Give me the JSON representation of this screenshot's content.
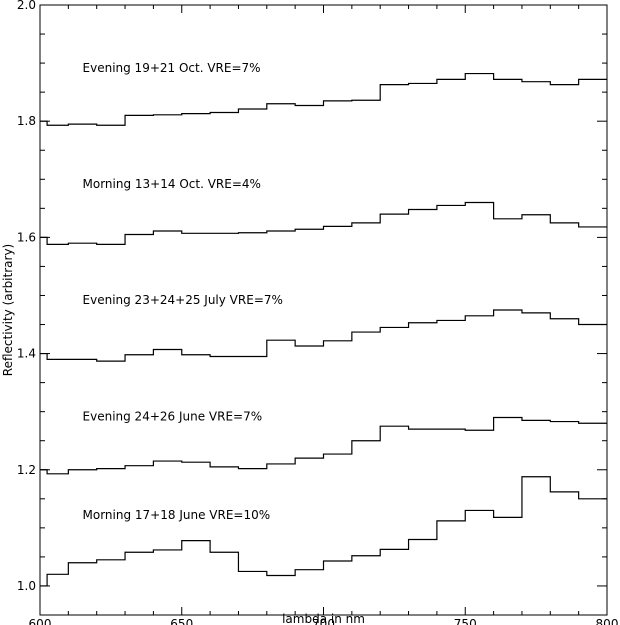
{
  "chart_data": {
    "type": "line",
    "title": "",
    "xlabel": "lambda in nm",
    "ylabel": "Reflectivity (arbitrary)",
    "xlim": [
      600,
      800
    ],
    "ylim": [
      0.95,
      2.0
    ],
    "x_ticks": [
      600,
      650,
      700,
      750,
      800
    ],
    "y_ticks": [
      1.0,
      1.2,
      1.4,
      1.6,
      1.8,
      2.0
    ],
    "x_tick_labels": [
      "600",
      "650",
      "700",
      "750",
      "800"
    ],
    "y_tick_labels": [
      "1.0",
      "1.2",
      "1.4",
      "1.6",
      "1.8",
      "2.0"
    ],
    "x": [
      600,
      605,
      615,
      625,
      635,
      645,
      655,
      665,
      675,
      685,
      695,
      705,
      715,
      725,
      735,
      745,
      755,
      765,
      775,
      785,
      795
    ],
    "step_style": "steps-mid",
    "grid": false,
    "legend": "none",
    "annotations": [
      "Evening 19+21 Oct. VRE=7%",
      "Morning 13+14 Oct. VRE=4%",
      "Evening 23+24+25 July VRE=7%",
      "Evening 24+26 June VRE=7%",
      "Morning 17+18 June VRE=10%"
    ],
    "series": [
      {
        "values": [
          1.8,
          1.793,
          1.795,
          1.793,
          1.81,
          1.811,
          1.813,
          1.815,
          1.821,
          1.83,
          1.827,
          1.835,
          1.836,
          1.863,
          1.865,
          1.872,
          1.882,
          1.872,
          1.868,
          1.863,
          1.872
        ]
      },
      {
        "values": [
          1.6,
          1.588,
          1.59,
          1.588,
          1.605,
          1.611,
          1.607,
          1.607,
          1.608,
          1.611,
          1.614,
          1.619,
          1.625,
          1.64,
          1.648,
          1.655,
          1.66,
          1.632,
          1.639,
          1.625,
          1.618
        ]
      },
      {
        "values": [
          1.4,
          1.39,
          1.39,
          1.387,
          1.398,
          1.407,
          1.398,
          1.395,
          1.395,
          1.423,
          1.413,
          1.422,
          1.437,
          1.445,
          1.453,
          1.457,
          1.465,
          1.475,
          1.47,
          1.46,
          1.45
        ]
      },
      {
        "values": [
          1.2,
          1.193,
          1.2,
          1.202,
          1.207,
          1.215,
          1.213,
          1.205,
          1.202,
          1.21,
          1.22,
          1.227,
          1.25,
          1.275,
          1.27,
          1.27,
          1.268,
          1.29,
          1.285,
          1.283,
          1.28
        ]
      },
      {
        "values": [
          1.0,
          1.02,
          1.04,
          1.045,
          1.058,
          1.062,
          1.078,
          1.058,
          1.025,
          1.018,
          1.028,
          1.043,
          1.052,
          1.063,
          1.08,
          1.112,
          1.13,
          1.118,
          1.188,
          1.162,
          1.15
        ]
      }
    ]
  }
}
